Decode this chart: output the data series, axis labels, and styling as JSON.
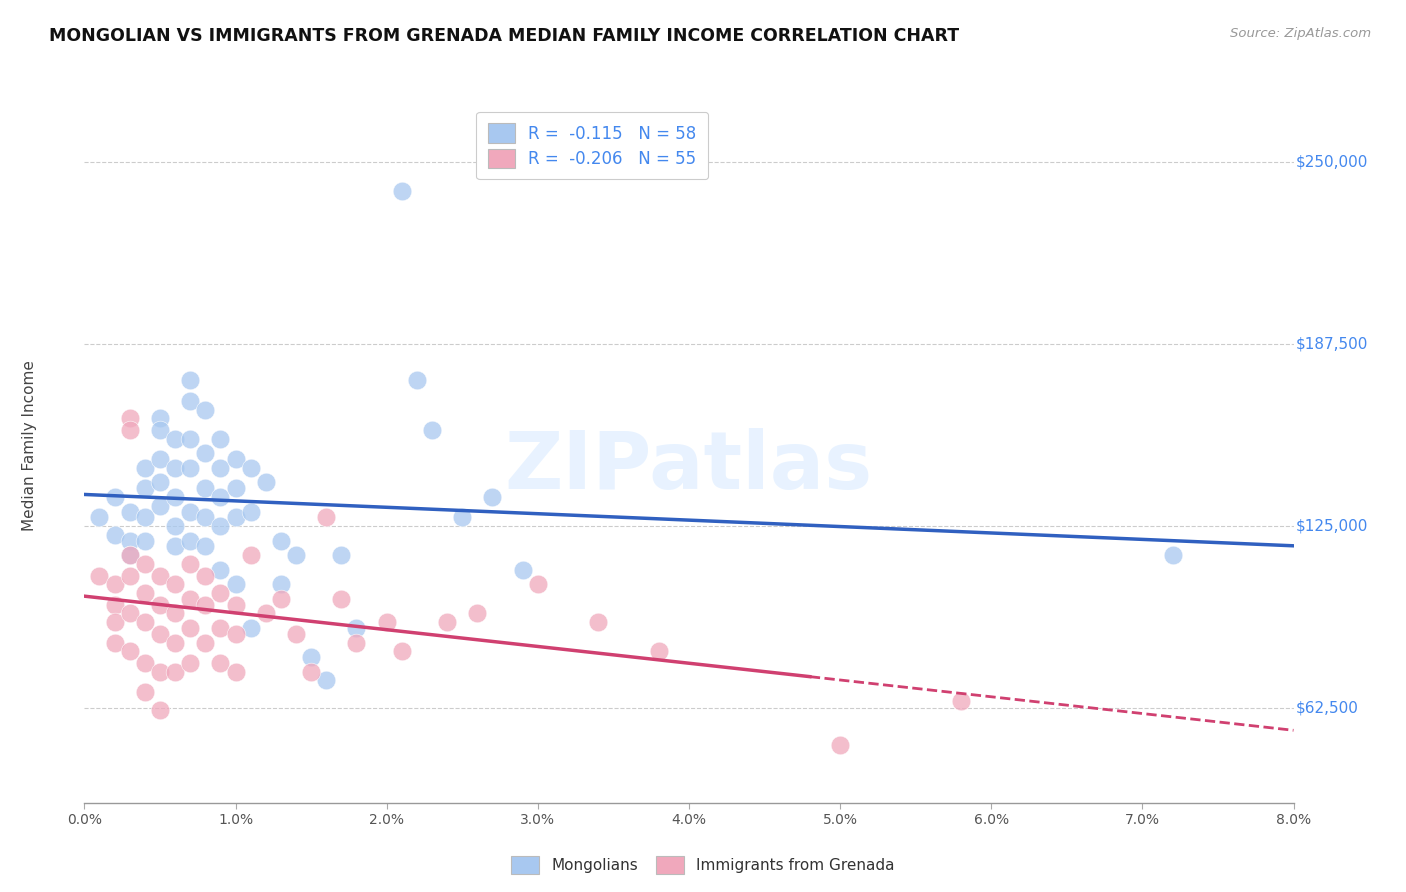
{
  "title": "MONGOLIAN VS IMMIGRANTS FROM GRENADA MEDIAN FAMILY INCOME CORRELATION CHART",
  "source": "Source: ZipAtlas.com",
  "ylabel": "Median Family Income",
  "yticks": [
    62500,
    125000,
    187500,
    250000
  ],
  "ytick_labels": [
    "$62,500",
    "$125,000",
    "$187,500",
    "$250,000"
  ],
  "xmin": 0.0,
  "xmax": 0.08,
  "ymin": 30000,
  "ymax": 275000,
  "mongolian_color": "#a8c8f0",
  "grenada_color": "#f0a8bc",
  "mongolian_line_color": "#3060c0",
  "grenada_line_color": "#d04070",
  "watermark": "ZIPatlas",
  "mongolian_scatter": [
    [
      0.001,
      128000
    ],
    [
      0.002,
      135000
    ],
    [
      0.002,
      122000
    ],
    [
      0.003,
      130000
    ],
    [
      0.003,
      120000
    ],
    [
      0.003,
      115000
    ],
    [
      0.004,
      145000
    ],
    [
      0.004,
      138000
    ],
    [
      0.004,
      128000
    ],
    [
      0.004,
      120000
    ],
    [
      0.005,
      162000
    ],
    [
      0.005,
      158000
    ],
    [
      0.005,
      148000
    ],
    [
      0.005,
      140000
    ],
    [
      0.005,
      132000
    ],
    [
      0.006,
      155000
    ],
    [
      0.006,
      145000
    ],
    [
      0.006,
      135000
    ],
    [
      0.006,
      125000
    ],
    [
      0.006,
      118000
    ],
    [
      0.007,
      175000
    ],
    [
      0.007,
      168000
    ],
    [
      0.007,
      155000
    ],
    [
      0.007,
      145000
    ],
    [
      0.007,
      130000
    ],
    [
      0.007,
      120000
    ],
    [
      0.008,
      165000
    ],
    [
      0.008,
      150000
    ],
    [
      0.008,
      138000
    ],
    [
      0.008,
      128000
    ],
    [
      0.008,
      118000
    ],
    [
      0.009,
      155000
    ],
    [
      0.009,
      145000
    ],
    [
      0.009,
      135000
    ],
    [
      0.009,
      125000
    ],
    [
      0.009,
      110000
    ],
    [
      0.01,
      148000
    ],
    [
      0.01,
      138000
    ],
    [
      0.01,
      128000
    ],
    [
      0.01,
      105000
    ],
    [
      0.011,
      145000
    ],
    [
      0.011,
      130000
    ],
    [
      0.011,
      90000
    ],
    [
      0.012,
      140000
    ],
    [
      0.013,
      120000
    ],
    [
      0.013,
      105000
    ],
    [
      0.014,
      115000
    ],
    [
      0.015,
      80000
    ],
    [
      0.016,
      72000
    ],
    [
      0.017,
      115000
    ],
    [
      0.018,
      90000
    ],
    [
      0.021,
      240000
    ],
    [
      0.022,
      175000
    ],
    [
      0.023,
      158000
    ],
    [
      0.025,
      128000
    ],
    [
      0.027,
      135000
    ],
    [
      0.029,
      110000
    ],
    [
      0.072,
      115000
    ]
  ],
  "grenada_scatter": [
    [
      0.001,
      108000
    ],
    [
      0.002,
      105000
    ],
    [
      0.002,
      98000
    ],
    [
      0.002,
      92000
    ],
    [
      0.002,
      85000
    ],
    [
      0.003,
      162000
    ],
    [
      0.003,
      158000
    ],
    [
      0.003,
      115000
    ],
    [
      0.003,
      108000
    ],
    [
      0.003,
      95000
    ],
    [
      0.003,
      82000
    ],
    [
      0.004,
      112000
    ],
    [
      0.004,
      102000
    ],
    [
      0.004,
      92000
    ],
    [
      0.004,
      78000
    ],
    [
      0.004,
      68000
    ],
    [
      0.005,
      108000
    ],
    [
      0.005,
      98000
    ],
    [
      0.005,
      88000
    ],
    [
      0.005,
      75000
    ],
    [
      0.005,
      62000
    ],
    [
      0.006,
      105000
    ],
    [
      0.006,
      95000
    ],
    [
      0.006,
      85000
    ],
    [
      0.006,
      75000
    ],
    [
      0.007,
      112000
    ],
    [
      0.007,
      100000
    ],
    [
      0.007,
      90000
    ],
    [
      0.007,
      78000
    ],
    [
      0.008,
      108000
    ],
    [
      0.008,
      98000
    ],
    [
      0.008,
      85000
    ],
    [
      0.009,
      102000
    ],
    [
      0.009,
      90000
    ],
    [
      0.009,
      78000
    ],
    [
      0.01,
      98000
    ],
    [
      0.01,
      88000
    ],
    [
      0.01,
      75000
    ],
    [
      0.011,
      115000
    ],
    [
      0.012,
      95000
    ],
    [
      0.013,
      100000
    ],
    [
      0.014,
      88000
    ],
    [
      0.015,
      75000
    ],
    [
      0.016,
      128000
    ],
    [
      0.017,
      100000
    ],
    [
      0.018,
      85000
    ],
    [
      0.02,
      92000
    ],
    [
      0.021,
      82000
    ],
    [
      0.024,
      92000
    ],
    [
      0.026,
      95000
    ],
    [
      0.03,
      105000
    ],
    [
      0.034,
      92000
    ],
    [
      0.038,
      82000
    ],
    [
      0.05,
      50000
    ],
    [
      0.058,
      65000
    ]
  ],
  "legend_blue_label": "R =  -0.115   N = 58",
  "legend_pink_label": "R =  -0.206   N = 55"
}
